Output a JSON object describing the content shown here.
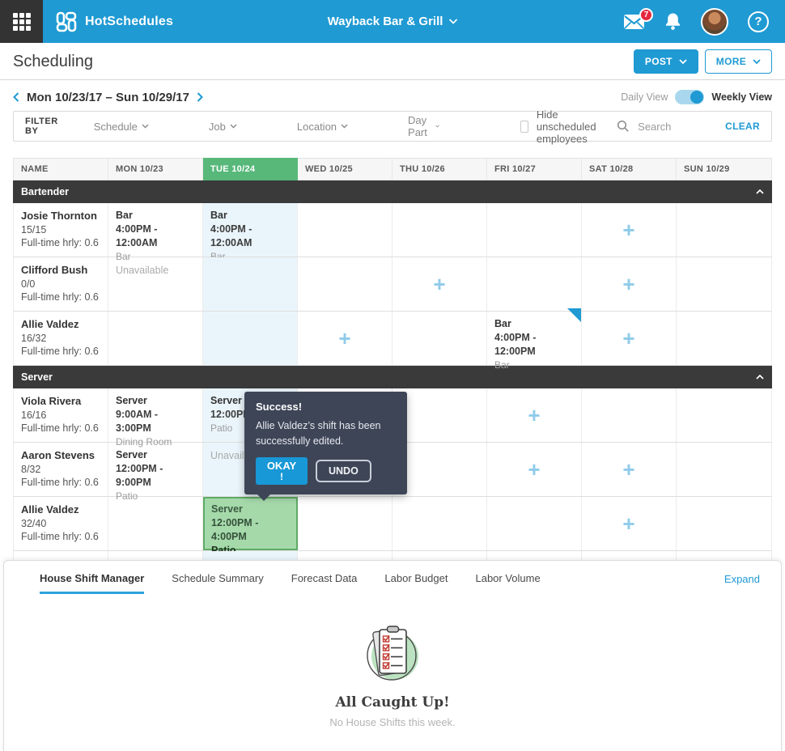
{
  "colors": {
    "accent": "#1F9AD3",
    "highlight_green": "#57B87A",
    "shift_green_bg": "#A5D9AA",
    "section_dark": "#3A3A3A",
    "popup_slate": "#3D4557",
    "badge_red": "#E4283F",
    "tue_tint": "#EAF5FB"
  },
  "topbar": {
    "brand": "HotSchedules",
    "store": "Wayback Bar & Grill",
    "mail_badge": "7",
    "help": "?"
  },
  "header": {
    "title": "Scheduling",
    "post_label": "POST",
    "more_label": "MORE"
  },
  "week": {
    "range": "Mon 10/23/17 – Sun 10/29/17",
    "daily_label": "Daily View",
    "weekly_label": "Weekly View",
    "active_view": "Weekly View"
  },
  "filter": {
    "label": "FILTER BY",
    "dropdowns": [
      "Schedule",
      "Job",
      "Location",
      "Day Part"
    ],
    "hide_label": "Hide unscheduled employees",
    "hide_checked": false,
    "search_placeholder": "Search",
    "clear_label": "CLEAR"
  },
  "table": {
    "columns": [
      "NAME",
      "MON 10/23",
      "TUE 10/24",
      "WED 10/25",
      "THU 10/26",
      "FRI 10/27",
      "SAT 10/28",
      "SUN 10/29"
    ],
    "highlighted_column": "TUE 10/24",
    "sections": [
      {
        "name": "Bartender",
        "collapsed": false,
        "rows": [
          {
            "name": "Josie Thornton",
            "hours": "15/15",
            "meta": "Full-time hrly: 0.6",
            "cells": [
              {
                "t": "shift",
                "job": "Bar",
                "time": "4:00PM - 12:00AM",
                "loc": "Bar"
              },
              {
                "t": "shift",
                "job": "Bar",
                "time": "4:00PM - 12:00AM",
                "loc": "Bar"
              },
              {
                "t": "empty"
              },
              {
                "t": "empty"
              },
              {
                "t": "empty"
              },
              {
                "t": "plus"
              },
              {
                "t": "empty"
              }
            ]
          },
          {
            "name": "Clifford Bush",
            "hours": "0/0",
            "meta": "Full-time hrly: 0.6",
            "cells": [
              {
                "t": "unavailable",
                "text": "Unavailable"
              },
              {
                "t": "empty"
              },
              {
                "t": "empty"
              },
              {
                "t": "plus"
              },
              {
                "t": "empty"
              },
              {
                "t": "plus"
              },
              {
                "t": "empty"
              }
            ]
          },
          {
            "name": "Allie Valdez",
            "hours": "16/32",
            "meta": "Full-time hrly: 0.6",
            "cells": [
              {
                "t": "empty"
              },
              {
                "t": "empty"
              },
              {
                "t": "plus"
              },
              {
                "t": "empty"
              },
              {
                "t": "shift",
                "job": "Bar",
                "time": "4:00PM - 12:00PM",
                "loc": "Bar",
                "corner": true
              },
              {
                "t": "plus"
              },
              {
                "t": "empty"
              }
            ]
          }
        ]
      },
      {
        "name": "Server",
        "collapsed": false,
        "rows": [
          {
            "name": "Viola Rivera",
            "hours": "16/16",
            "meta": "Full-time hrly: 0.6",
            "cells": [
              {
                "t": "shift",
                "job": "Server",
                "time": "9:00AM - 3:00PM",
                "loc": "Dining Room"
              },
              {
                "t": "shift",
                "job": "Server",
                "time": "12:00PM",
                "loc": "Patio"
              },
              {
                "t": "empty"
              },
              {
                "t": "empty"
              },
              {
                "t": "plus"
              },
              {
                "t": "empty"
              },
              {
                "t": "empty"
              }
            ]
          },
          {
            "name": "Aaron Stevens",
            "hours": "8/32",
            "meta": "Full-time hrly: 0.6",
            "cells": [
              {
                "t": "shift",
                "job": "Server",
                "time": "12:00PM - 9:00PM",
                "loc": "Patio"
              },
              {
                "t": "unavailable",
                "text": "Unavailable"
              },
              {
                "t": "empty"
              },
              {
                "t": "empty"
              },
              {
                "t": "plus"
              },
              {
                "t": "plus"
              },
              {
                "t": "empty"
              }
            ]
          },
          {
            "name": "Allie Valdez",
            "hours": "32/40",
            "meta": "Full-time hrly: 0.6",
            "cells": [
              {
                "t": "empty"
              },
              {
                "t": "shift",
                "job": "Server",
                "time": "12:00PM - 4:00PM",
                "loc": "Patio",
                "green": true
              },
              {
                "t": "empty"
              },
              {
                "t": "empty"
              },
              {
                "t": "empty"
              },
              {
                "t": "plus"
              },
              {
                "t": "empty"
              }
            ]
          }
        ]
      }
    ]
  },
  "popup": {
    "title": "Success!",
    "message": "Allie Valdez’s shift has been successfully edited.",
    "okay": "OKAY",
    "okay_mark": "!",
    "undo": "UNDO"
  },
  "panel": {
    "tabs": [
      "House Shift Manager",
      "Schedule Summary",
      "Forecast Data",
      "Labor Budget",
      "Labor Volume"
    ],
    "active_tab": "House Shift Manager",
    "expand": "Expand",
    "empty_title": "All Caught Up!",
    "empty_sub": "No House Shifts this week."
  }
}
